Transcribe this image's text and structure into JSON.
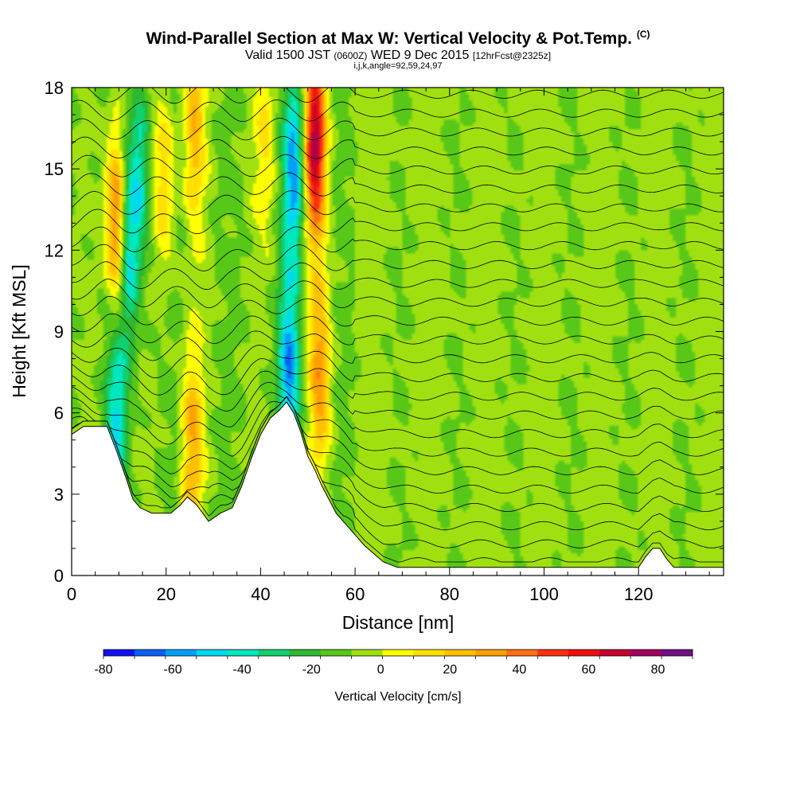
{
  "header": {
    "title": "Wind-Parallel Section at Max W: Vertical Velocity & Pot.Temp.",
    "title_tag": "(C)",
    "valid_prefix": "Valid 1500 JST",
    "valid_zulu": "(0600Z)",
    "valid_date": "WED 9 Dec 2015",
    "forecast": "[12hrFcst@2325z]",
    "params": "i,j,k,angle=92,59,24,97"
  },
  "chart_data": {
    "type": "heatmap",
    "xlabel": "Distance [nm]",
    "ylabel": "Height [Kft MSL]",
    "xlim": [
      0,
      138
    ],
    "ylim": [
      0,
      18
    ],
    "x_ticks": [
      0,
      20,
      40,
      60,
      80,
      100,
      120
    ],
    "y_ticks": [
      0,
      3,
      6,
      9,
      12,
      15,
      18
    ],
    "colorbar": {
      "title": "Vertical Velocity [cm/s]",
      "bounds": [
        -80,
        90
      ],
      "step": 10,
      "tick_values": [
        -80,
        -60,
        -40,
        -20,
        0,
        20,
        40,
        60,
        80
      ],
      "tick_labels": [
        "-80",
        "-60",
        "-40",
        "-20",
        "0",
        "20",
        "40",
        "60",
        "80"
      ],
      "colors": [
        "#1010f0",
        "#0a5ff5",
        "#00a0f8",
        "#00d8f0",
        "#00e8c0",
        "#10d070",
        "#2cb830",
        "#58c818",
        "#a0e010",
        "#ffff00",
        "#ffe000",
        "#ffc000",
        "#ffa000",
        "#ff7010",
        "#ff3010",
        "#ee1010",
        "#c80030",
        "#a00060",
        "#701080"
      ]
    },
    "terrain_top_kft": [
      {
        "x": 0,
        "h": 5.2
      },
      {
        "x": 2.5,
        "h": 5.5
      },
      {
        "x": 7.5,
        "h": 5.5
      },
      {
        "x": 9.5,
        "h": 4.6
      },
      {
        "x": 11.5,
        "h": 3.6
      },
      {
        "x": 13,
        "h": 2.8
      },
      {
        "x": 14.5,
        "h": 2.5
      },
      {
        "x": 17,
        "h": 2.3
      },
      {
        "x": 21,
        "h": 2.3
      },
      {
        "x": 23,
        "h": 2.6
      },
      {
        "x": 24.5,
        "h": 2.9
      },
      {
        "x": 26.5,
        "h": 2.6
      },
      {
        "x": 29,
        "h": 2.0
      },
      {
        "x": 31.5,
        "h": 2.3
      },
      {
        "x": 34,
        "h": 2.5
      },
      {
        "x": 36,
        "h": 3.3
      },
      {
        "x": 38,
        "h": 4.3
      },
      {
        "x": 40,
        "h": 5.2
      },
      {
        "x": 42,
        "h": 5.8
      },
      {
        "x": 44,
        "h": 6.1
      },
      {
        "x": 45.5,
        "h": 6.4
      },
      {
        "x": 47,
        "h": 6.0
      },
      {
        "x": 48.5,
        "h": 5.3
      },
      {
        "x": 50,
        "h": 4.4
      },
      {
        "x": 51.5,
        "h": 3.9
      },
      {
        "x": 53,
        "h": 3.3
      },
      {
        "x": 54.5,
        "h": 2.8
      },
      {
        "x": 56,
        "h": 2.3
      },
      {
        "x": 58,
        "h": 1.9
      },
      {
        "x": 60,
        "h": 1.5
      },
      {
        "x": 62,
        "h": 1.1
      },
      {
        "x": 64,
        "h": 0.8
      },
      {
        "x": 66,
        "h": 0.5
      },
      {
        "x": 69,
        "h": 0.3
      },
      {
        "x": 100,
        "h": 0.3
      },
      {
        "x": 120,
        "h": 0.3
      },
      {
        "x": 121.5,
        "h": 0.7
      },
      {
        "x": 123,
        "h": 1.0
      },
      {
        "x": 124.5,
        "h": 1.0
      },
      {
        "x": 126,
        "h": 0.6
      },
      {
        "x": 127.5,
        "h": 0.3
      },
      {
        "x": 138,
        "h": 0.3
      }
    ],
    "updraft_features": [
      {
        "x": 9.5,
        "z": 13.0,
        "w": 60
      },
      {
        "x": 19.5,
        "z": 14.5,
        "w": 30
      },
      {
        "x": 26,
        "z": 16.5,
        "w": 35
      },
      {
        "x": 51.5,
        "z": 16.0,
        "w": 90
      },
      {
        "x": 52.5,
        "z": 7.5,
        "w": 45
      },
      {
        "x": 25.5,
        "z": 4.8,
        "w": 40
      },
      {
        "x": 41,
        "z": 16.0,
        "w": 20
      }
    ],
    "downdraft_features": [
      {
        "x": 12,
        "z": 12.0,
        "w": -45
      },
      {
        "x": 14.5,
        "z": 15.0,
        "w": -35
      },
      {
        "x": 47,
        "z": 15.0,
        "w": -55
      },
      {
        "x": 46,
        "z": 7.5,
        "w": -55
      },
      {
        "x": 9.5,
        "z": 6.0,
        "w": -40
      }
    ]
  }
}
